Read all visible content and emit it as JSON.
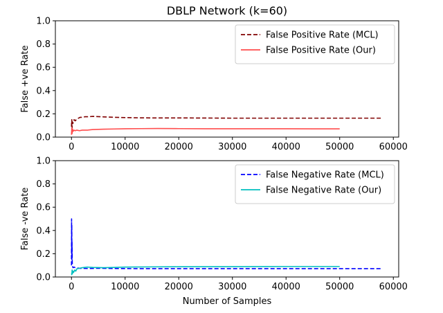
{
  "figure": {
    "title": "DBLP Network (k=60)"
  },
  "chart_data": [
    {
      "type": "line",
      "xlabel": "",
      "ylabel": "False +ve Rate",
      "xlim": [
        -3000,
        61000
      ],
      "ylim": [
        0,
        1.0
      ],
      "xticks": [
        0,
        10000,
        20000,
        30000,
        40000,
        50000,
        60000
      ],
      "yticks": [
        0.0,
        0.2,
        0.4,
        0.6,
        0.8,
        1.0
      ],
      "legend_position": "top-right",
      "series": [
        {
          "name": "False Positive Rate (MCL)",
          "color": "#800000",
          "dash": "dashed",
          "x": [
            0,
            60,
            120,
            200,
            300,
            400,
            500,
            700,
            900,
            1200,
            1600,
            2000,
            2500,
            3000,
            4000,
            5000,
            6000,
            8000,
            10000,
            12000,
            15000,
            20000,
            25000,
            30000,
            35000,
            40000,
            45000,
            50000,
            55000,
            58000
          ],
          "y": [
            0.09,
            0.15,
            0.08,
            0.13,
            0.12,
            0.14,
            0.15,
            0.14,
            0.15,
            0.16,
            0.17,
            0.17,
            0.175,
            0.175,
            0.178,
            0.176,
            0.174,
            0.17,
            0.168,
            0.166,
            0.165,
            0.165,
            0.164,
            0.163,
            0.163,
            0.163,
            0.163,
            0.163,
            0.163,
            0.163
          ]
        },
        {
          "name": "False Positive Rate (Our)",
          "color": "#ff4c4c",
          "dash": "solid",
          "x": [
            0,
            60,
            120,
            200,
            300,
            500,
            700,
            1000,
            1500,
            2000,
            3000,
            4000,
            6000,
            8000,
            10000,
            13000,
            16000,
            20000,
            25000,
            30000,
            35000,
            40000,
            45000,
            50000
          ],
          "y": [
            0.02,
            0.08,
            0.03,
            0.07,
            0.05,
            0.06,
            0.055,
            0.06,
            0.055,
            0.06,
            0.06,
            0.065,
            0.068,
            0.07,
            0.072,
            0.073,
            0.074,
            0.073,
            0.072,
            0.072,
            0.072,
            0.072,
            0.071,
            0.071
          ]
        }
      ]
    },
    {
      "type": "line",
      "xlabel": "Number of Samples",
      "ylabel": "False -ve Rate",
      "xlim": [
        -3000,
        61000
      ],
      "ylim": [
        0,
        1.0
      ],
      "xticks": [
        0,
        10000,
        20000,
        30000,
        40000,
        50000,
        60000
      ],
      "yticks": [
        0.0,
        0.2,
        0.4,
        0.6,
        0.8,
        1.0
      ],
      "legend_position": "top-right",
      "series": [
        {
          "name": "False Negative Rate (MCL)",
          "color": "#0000ff",
          "dash": "dashed",
          "x": [
            0,
            20,
            40,
            60,
            80,
            100,
            150,
            200,
            300,
            500,
            700,
            1000,
            1500,
            2000,
            3000,
            5000,
            8000,
            12000,
            20000,
            30000,
            40000,
            50000,
            58000
          ],
          "y": [
            0.1,
            0.5,
            0.2,
            0.45,
            0.15,
            0.3,
            0.12,
            0.09,
            0.08,
            0.085,
            0.08,
            0.078,
            0.075,
            0.074,
            0.073,
            0.075,
            0.073,
            0.072,
            0.072,
            0.072,
            0.072,
            0.072,
            0.072
          ]
        },
        {
          "name": "False Negative Rate (Our)",
          "color": "#00bfbf",
          "dash": "solid",
          "x": [
            0,
            60,
            120,
            200,
            300,
            400,
            600,
            800,
            1000,
            1500,
            2000,
            3000,
            4000,
            6000,
            8000,
            10000,
            15000,
            20000,
            30000,
            40000,
            50000
          ],
          "y": [
            0.03,
            0.02,
            0.06,
            0.03,
            0.05,
            0.04,
            0.06,
            0.05,
            0.07,
            0.075,
            0.08,
            0.085,
            0.082,
            0.08,
            0.082,
            0.085,
            0.087,
            0.088,
            0.089,
            0.09,
            0.09
          ]
        }
      ]
    }
  ]
}
